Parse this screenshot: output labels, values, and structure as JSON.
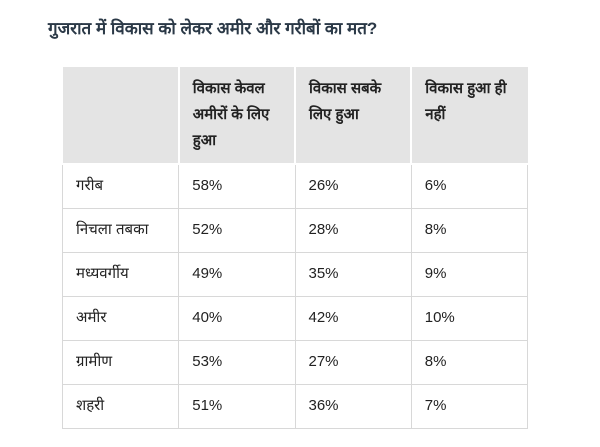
{
  "chart_data": {
    "type": "table",
    "title": "गुजरात में विकास को लेकर अमीर और गरीबों का मत?",
    "columns": [
      "",
      "विकास केवल अमीरों के लिए हुआ",
      "विकास सबके लिए हुआ",
      "विकास हुआ ही नहीं"
    ],
    "rows": [
      {
        "label": "गरीब",
        "values": [
          "58%",
          "26%",
          "6%"
        ]
      },
      {
        "label": "निचला तबका",
        "values": [
          "52%",
          "28%",
          "8%"
        ]
      },
      {
        "label": "मध्यवर्गीय",
        "values": [
          "49%",
          "35%",
          "9%"
        ]
      },
      {
        "label": "अमीर",
        "values": [
          "40%",
          "42%",
          "10%"
        ]
      },
      {
        "label": "ग्रामीण",
        "values": [
          "53%",
          "27%",
          "8%"
        ]
      },
      {
        "label": "शहरी",
        "values": [
          "51%",
          "36%",
          "7%"
        ]
      }
    ],
    "layout": {
      "header_row": true,
      "grid": "on",
      "legend": "none"
    }
  },
  "colors": {
    "header_bg": "#e4e4e4",
    "border": "#d8d8d8",
    "body_text": "#222222",
    "title_text": "#2b3947",
    "background": "#ffffff"
  }
}
